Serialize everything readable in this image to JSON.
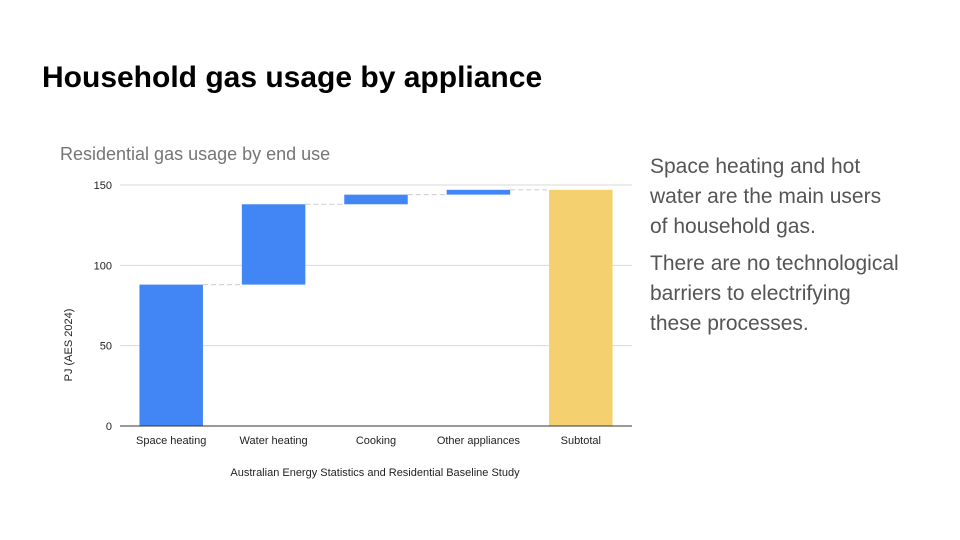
{
  "slide": {
    "title": "Household gas usage by appliance",
    "paragraphs": [
      "Space heating and hot water are the main users of household gas.",
      "There are no technological barriers to electrifying these processes."
    ]
  },
  "colors": {
    "increase": "#4285f4",
    "total": "#f4d06f",
    "gridline": "#d9d9d9",
    "axis": "#333333",
    "connector": "#cccccc"
  },
  "chart_data": {
    "type": "bar",
    "subtype": "waterfall",
    "title": "Residential gas usage by end use",
    "xlabel": "Australian Energy Statistics and Residential Baseline Study",
    "ylabel": "PJ (AES 2024)",
    "categories": [
      "Space heating",
      "Water heating",
      "Cooking",
      "Other appliances",
      "Subtotal"
    ],
    "values": [
      88,
      50,
      6,
      3,
      147
    ],
    "is_total": [
      false,
      false,
      false,
      false,
      true
    ],
    "ylim": [
      0,
      150
    ],
    "yticks": [
      0,
      50,
      100,
      150
    ],
    "grid": true,
    "legend": "none"
  }
}
